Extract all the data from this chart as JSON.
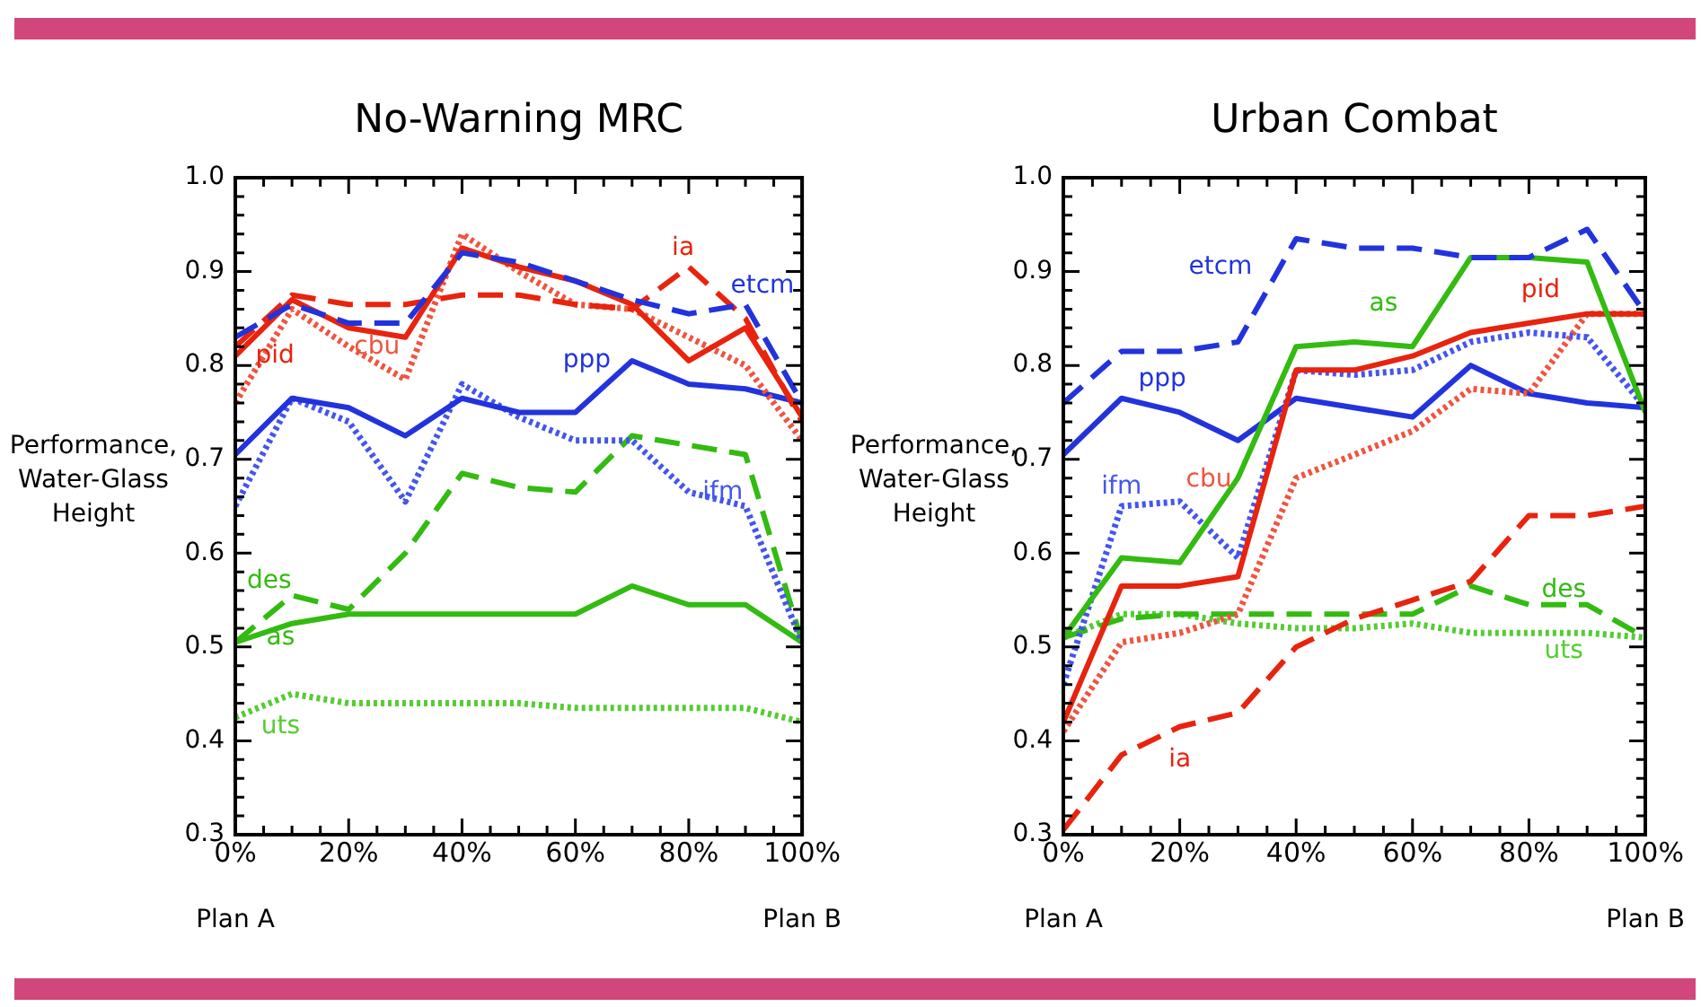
{
  "chart_data": [
    {
      "type": "line",
      "title": "No-Warning MRC",
      "ylabel": "Performance,\nWater-Glass\nHeight",
      "x": [
        0,
        10,
        20,
        30,
        40,
        50,
        60,
        70,
        80,
        90,
        100
      ],
      "xlim": [
        0,
        100
      ],
      "xticks": [
        {
          "value": 0,
          "label": "0%"
        },
        {
          "value": 5,
          "label": null
        },
        {
          "value": 10,
          "label": null
        },
        {
          "value": 15,
          "label": null
        },
        {
          "value": 20,
          "label": "20%"
        },
        {
          "value": 25,
          "label": null
        },
        {
          "value": 30,
          "label": null
        },
        {
          "value": 35,
          "label": null
        },
        {
          "value": 40,
          "label": "40%"
        },
        {
          "value": 45,
          "label": null
        },
        {
          "value": 50,
          "label": null
        },
        {
          "value": 55,
          "label": null
        },
        {
          "value": 60,
          "label": "60%"
        },
        {
          "value": 65,
          "label": null
        },
        {
          "value": 70,
          "label": null
        },
        {
          "value": 75,
          "label": null
        },
        {
          "value": 80,
          "label": "80%"
        },
        {
          "value": 85,
          "label": null
        },
        {
          "value": 90,
          "label": null
        },
        {
          "value": 95,
          "label": null
        },
        {
          "value": 100,
          "label": "100%"
        }
      ],
      "ylim": [
        0.3,
        1
      ],
      "yticks": [
        0.3,
        0.4,
        0.5,
        0.6,
        0.7,
        0.8,
        0.9,
        {
          "value": 1,
          "label": "1.0"
        }
      ],
      "annotations": [
        "Plan A",
        "Plan B"
      ],
      "series": [
        {
          "name": "etcm",
          "color": "#2233dd",
          "line_style": "dashed",
          "values": [
            0.83,
            0.865,
            0.845,
            0.845,
            0.92,
            0.91,
            0.89,
            0.87,
            0.855,
            0.865,
            0.76
          ]
        },
        {
          "name": "ia",
          "color": "#e8230e",
          "line_style": "dashed",
          "values": [
            0.82,
            0.875,
            0.865,
            0.865,
            0.875,
            0.875,
            0.865,
            0.86,
            0.905,
            0.85,
            0.74
          ]
        },
        {
          "name": "pid",
          "color": "#e8230e",
          "line_style": "solid",
          "values": [
            0.81,
            0.87,
            0.84,
            0.83,
            0.925,
            0.905,
            0.89,
            0.865,
            0.805,
            0.84,
            0.745
          ]
        },
        {
          "name": "cbu",
          "color": "#ee5540",
          "line_style": "dotted",
          "values": [
            0.76,
            0.86,
            0.82,
            0.785,
            0.94,
            0.9,
            0.865,
            0.86,
            0.83,
            0.8,
            0.72
          ]
        },
        {
          "name": "ppp",
          "color": "#2233dd",
          "line_style": "solid",
          "values": [
            0.705,
            0.765,
            0.755,
            0.725,
            0.765,
            0.75,
            0.75,
            0.805,
            0.78,
            0.775,
            0.76
          ]
        },
        {
          "name": "ifm",
          "color": "#4455ee",
          "line_style": "dotted",
          "values": [
            0.65,
            0.765,
            0.74,
            0.655,
            0.78,
            0.745,
            0.72,
            0.72,
            0.665,
            0.65,
            0.505
          ]
        },
        {
          "name": "des",
          "color": "#33bb11",
          "line_style": "dashed",
          "values": [
            0.505,
            0.555,
            0.54,
            0.6,
            0.685,
            0.67,
            0.665,
            0.725,
            0.715,
            0.705,
            0.505
          ]
        },
        {
          "name": "as",
          "color": "#33bb11",
          "line_style": "solid",
          "values": [
            0.505,
            0.525,
            0.535,
            0.535,
            0.535,
            0.535,
            0.535,
            0.565,
            0.545,
            0.545,
            0.505
          ]
        },
        {
          "name": "uts",
          "color": "#55cc33",
          "line_style": "dotted",
          "values": [
            0.425,
            0.45,
            0.44,
            0.44,
            0.44,
            0.44,
            0.435,
            0.435,
            0.435,
            0.435,
            0.42
          ]
        }
      ]
    },
    {
      "type": "line",
      "title": "Urban Combat",
      "ylabel": "Performance,\nWater-Glass\nHeight",
      "x": [
        0,
        10,
        20,
        30,
        40,
        50,
        60,
        70,
        80,
        90,
        100
      ],
      "xlim": [
        0,
        100
      ],
      "xticks": [
        {
          "value": 0,
          "label": "0%"
        },
        {
          "value": 5,
          "label": null
        },
        {
          "value": 10,
          "label": null
        },
        {
          "value": 15,
          "label": null
        },
        {
          "value": 20,
          "label": "20%"
        },
        {
          "value": 25,
          "label": null
        },
        {
          "value": 30,
          "label": null
        },
        {
          "value": 35,
          "label": null
        },
        {
          "value": 40,
          "label": "40%"
        },
        {
          "value": 45,
          "label": null
        },
        {
          "value": 50,
          "label": null
        },
        {
          "value": 55,
          "label": null
        },
        {
          "value": 60,
          "label": "60%"
        },
        {
          "value": 65,
          "label": null
        },
        {
          "value": 70,
          "label": null
        },
        {
          "value": 75,
          "label": null
        },
        {
          "value": 80,
          "label": "80%"
        },
        {
          "value": 85,
          "label": null
        },
        {
          "value": 90,
          "label": null
        },
        {
          "value": 95,
          "label": null
        },
        {
          "value": 100,
          "label": "100%"
        }
      ],
      "ylim": [
        0.3,
        1
      ],
      "yticks": [
        0.3,
        0.4,
        0.5,
        0.6,
        0.7,
        0.8,
        0.9,
        {
          "value": 1,
          "label": "1.0"
        }
      ],
      "annotations": [
        "Plan A",
        "Plan B"
      ],
      "series": [
        {
          "name": "etcm",
          "color": "#2233dd",
          "line_style": "dashed",
          "values": [
            0.76,
            0.815,
            0.815,
            0.825,
            0.935,
            0.925,
            0.925,
            0.915,
            0.915,
            0.945,
            0.855
          ]
        },
        {
          "name": "as",
          "color": "#33bb11",
          "line_style": "solid",
          "values": [
            0.51,
            0.595,
            0.59,
            0.68,
            0.82,
            0.825,
            0.82,
            0.915,
            0.915,
            0.91,
            0.75
          ]
        },
        {
          "name": "pid",
          "color": "#e8230e",
          "line_style": "solid",
          "values": [
            0.42,
            0.565,
            0.565,
            0.575,
            0.795,
            0.795,
            0.81,
            0.835,
            0.845,
            0.855,
            0.855
          ]
        },
        {
          "name": "ifm",
          "color": "#4455ee",
          "line_style": "dotted",
          "values": [
            0.46,
            0.65,
            0.655,
            0.595,
            0.795,
            0.79,
            0.795,
            0.825,
            0.835,
            0.83,
            0.755
          ]
        },
        {
          "name": "cbu",
          "color": "#ee5540",
          "line_style": "dotted",
          "values": [
            0.41,
            0.505,
            0.515,
            0.535,
            0.68,
            0.705,
            0.73,
            0.775,
            0.77,
            0.855,
            0.855
          ]
        },
        {
          "name": "ppp",
          "color": "#2233dd",
          "line_style": "solid",
          "values": [
            0.705,
            0.765,
            0.75,
            0.72,
            0.765,
            0.755,
            0.745,
            0.8,
            0.77,
            0.76,
            0.755
          ]
        },
        {
          "name": "ia",
          "color": "#e8230e",
          "line_style": "dashed",
          "values": [
            0.305,
            0.385,
            0.415,
            0.43,
            0.5,
            0.53,
            0.55,
            0.57,
            0.64,
            0.64,
            0.65
          ]
        },
        {
          "name": "des",
          "color": "#33bb11",
          "line_style": "dashed",
          "values": [
            0.51,
            0.53,
            0.535,
            0.535,
            0.535,
            0.535,
            0.535,
            0.565,
            0.545,
            0.545,
            0.51
          ]
        },
        {
          "name": "uts",
          "color": "#55cc33",
          "line_style": "dotted",
          "values": [
            0.51,
            0.535,
            0.535,
            0.525,
            0.52,
            0.52,
            0.525,
            0.515,
            0.515,
            0.515,
            0.51
          ]
        }
      ]
    }
  ]
}
